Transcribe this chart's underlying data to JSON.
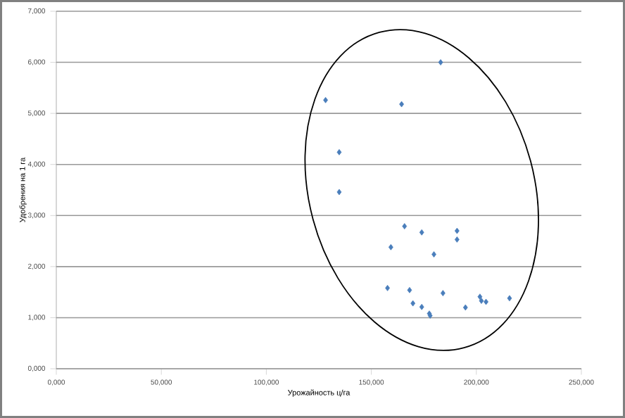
{
  "chart_data": {
    "type": "scatter",
    "xlabel": "Урожайность ц/га",
    "ylabel": "Удобрения на 1 га",
    "xlim": [
      0,
      250
    ],
    "ylim": [
      0,
      7
    ],
    "xticks": [
      {
        "value": 0,
        "label": "0,000"
      },
      {
        "value": 50,
        "label": "50,000"
      },
      {
        "value": 100,
        "label": "100,000"
      },
      {
        "value": 150,
        "label": "150,000"
      },
      {
        "value": 200,
        "label": "200,000"
      },
      {
        "value": 250,
        "label": "250,000"
      }
    ],
    "yticks": [
      {
        "value": 0,
        "label": "0,000"
      },
      {
        "value": 1,
        "label": "1,000"
      },
      {
        "value": 2,
        "label": "2,000"
      },
      {
        "value": 3,
        "label": "3,000"
      },
      {
        "value": 4,
        "label": "4,000"
      },
      {
        "value": 5,
        "label": "5,000"
      },
      {
        "value": 6,
        "label": "6,000"
      },
      {
        "value": 7,
        "label": "7,000"
      }
    ],
    "grid": "y",
    "marker": "diamond",
    "series": [
      {
        "color": "#4a7ebb",
        "x": [
          183,
          128.2,
          164.4,
          134.7,
          134.7,
          165.8,
          174,
          190.8,
          190.8,
          159.3,
          179.8,
          157.7,
          168.2,
          184.1,
          169.8,
          174,
          177.6,
          178,
          194.8,
          201.7,
          202.4,
          204.6,
          215.8
        ],
        "values": [
          6.0,
          5.26,
          5.18,
          4.24,
          3.46,
          2.79,
          2.67,
          2.7,
          2.53,
          2.38,
          2.24,
          1.58,
          1.54,
          1.48,
          1.28,
          1.21,
          1.08,
          1.04,
          1.2,
          1.41,
          1.33,
          1.31,
          1.38
        ]
      }
    ]
  }
}
